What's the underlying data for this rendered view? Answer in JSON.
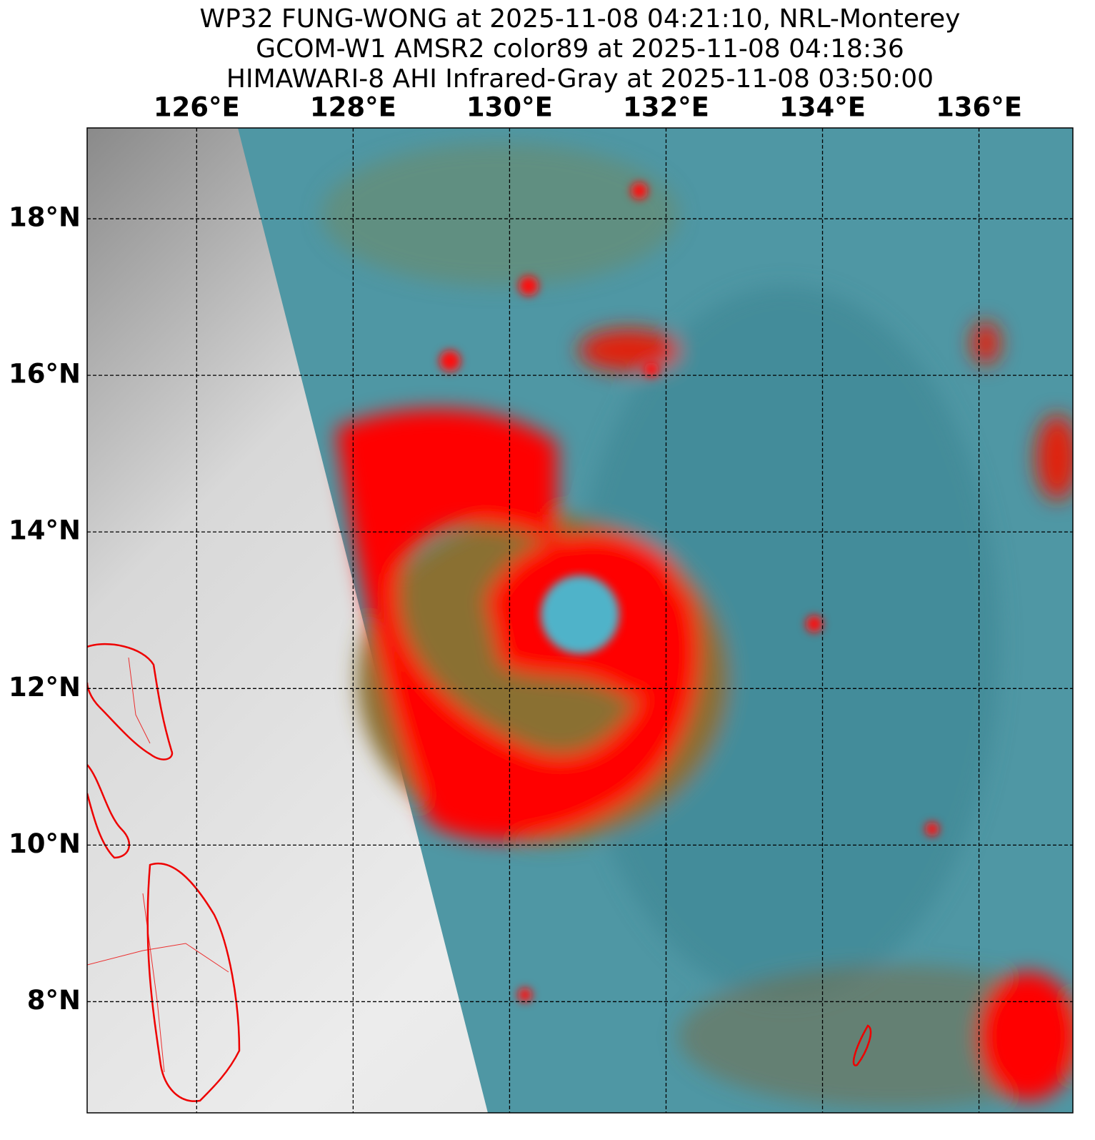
{
  "title_lines": [
    "WP32 FUNG-WONG at 2025-11-08 04:21:10, NRL-Monterey",
    "GCOM-W1 AMSR2 color89 at 2025-11-08 04:18:36",
    "HIMAWARI-8 AHI Infrared-Gray at 2025-11-08 03:50:00"
  ],
  "map": {
    "lon_range": [
      124.6,
      137.2
    ],
    "lat_range": [
      6.58,
      19.16
    ],
    "lon_ticks": [
      {
        "value": 126,
        "label": "126°E"
      },
      {
        "value": 128,
        "label": "128°E"
      },
      {
        "value": 130,
        "label": "130°E"
      },
      {
        "value": 132,
        "label": "132°E"
      },
      {
        "value": 134,
        "label": "134°E"
      },
      {
        "value": 136,
        "label": "136°E"
      }
    ],
    "lat_ticks": [
      {
        "value": 18,
        "label": "18°N"
      },
      {
        "value": 16,
        "label": "16°N"
      },
      {
        "value": 14,
        "label": "14°N"
      },
      {
        "value": 12,
        "label": "12°N"
      },
      {
        "value": 10,
        "label": "10°N"
      },
      {
        "value": 8,
        "label": "8°N"
      }
    ],
    "grid": true
  }
}
